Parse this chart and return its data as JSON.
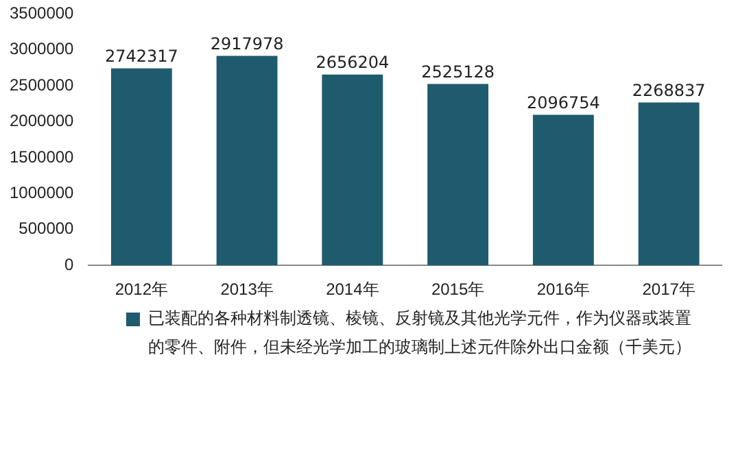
{
  "chart_data": {
    "type": "bar",
    "categories": [
      "2012年",
      "2013年",
      "2014年",
      "2015年",
      "2016年",
      "2017年"
    ],
    "series": [
      {
        "name": "已装配的各种材料制透镜、棱镜、反射镜及其他光学元件，作为仪器或装置的零件、附件，但未经光学加工的玻璃制上述元件除外出口金额（千美元）",
        "color": "#1f5b6e",
        "values": [
          2742317,
          2917978,
          2656204,
          2525128,
          2096754,
          2268837
        ]
      }
    ],
    "ylim": [
      0,
      3500000
    ],
    "yticks": [
      0,
      500000,
      1000000,
      1500000,
      2000000,
      2500000,
      3000000,
      3500000
    ],
    "data_labels": true,
    "grid": false,
    "legend": "bottom"
  }
}
